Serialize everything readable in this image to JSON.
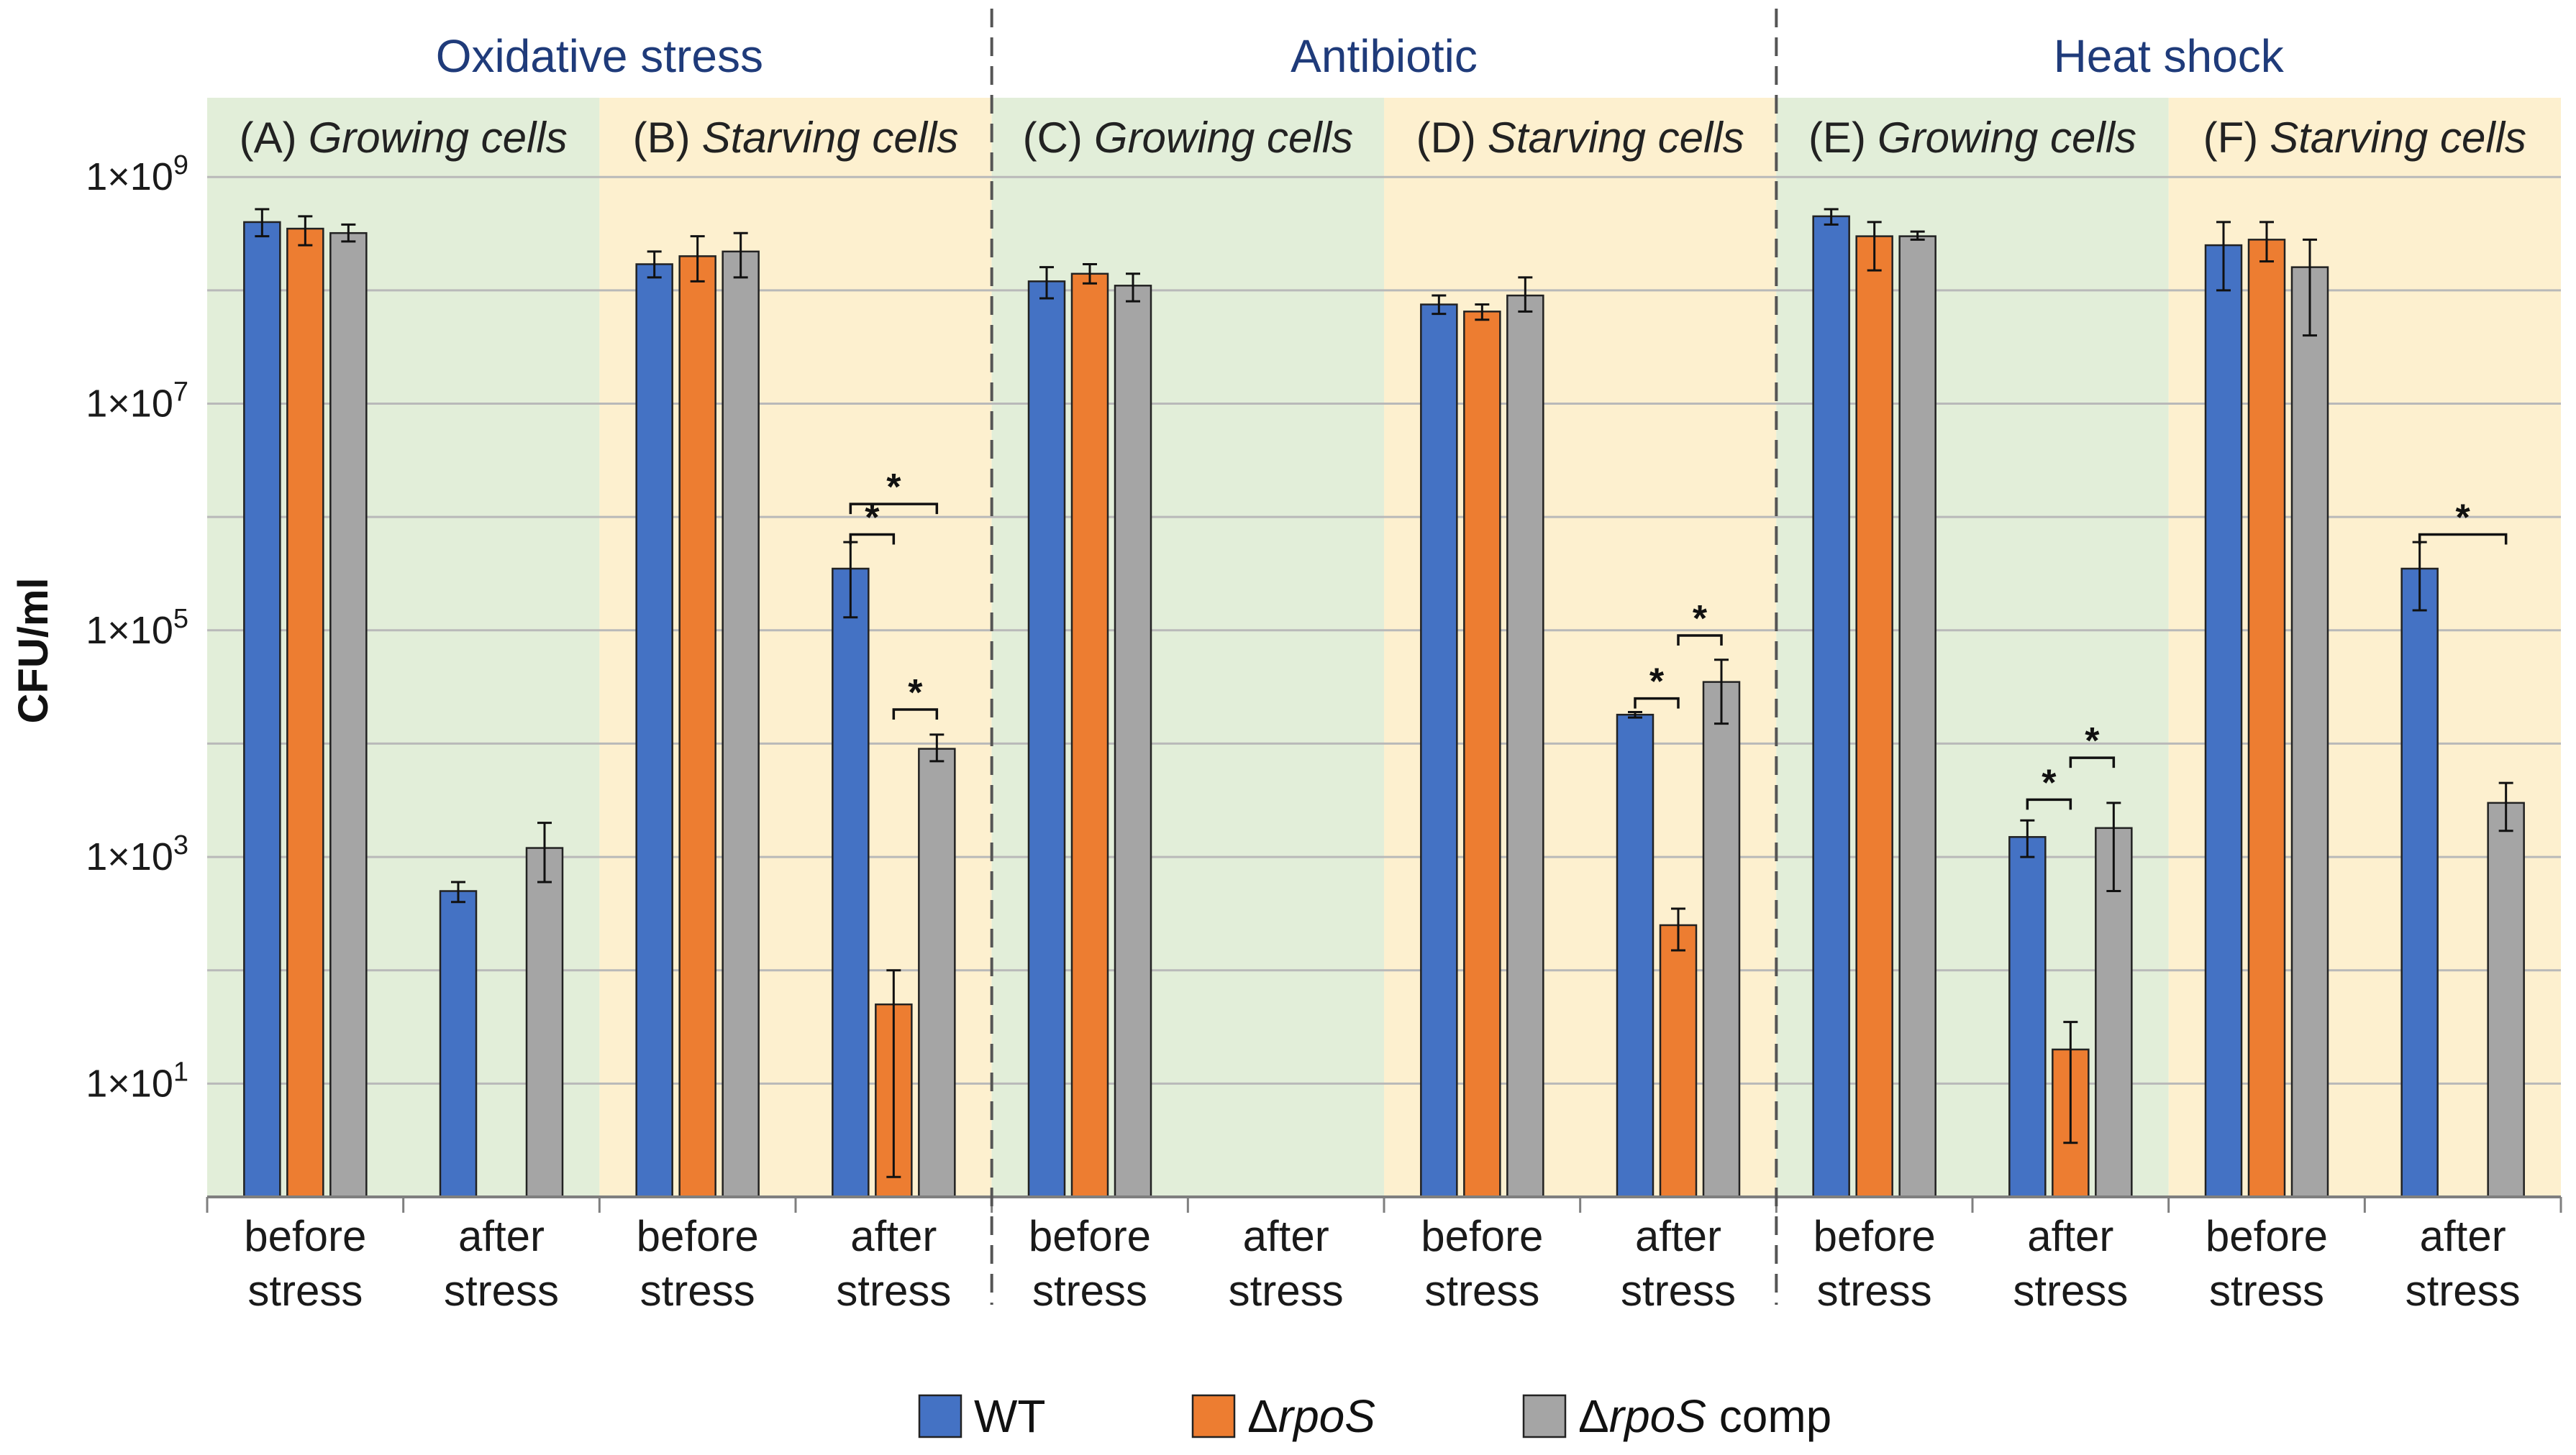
{
  "chart_data": {
    "type": "bar",
    "yscale": "log",
    "ylim": [
      1,
      5000000000
    ],
    "ylabel": "CFU/ml",
    "yticks": [
      {
        "value": 10,
        "base": "1×10",
        "exp": "1"
      },
      {
        "value": 1000,
        "base": "1×10",
        "exp": "3"
      },
      {
        "value": 100000,
        "base": "1×10",
        "exp": "5"
      },
      {
        "value": 10000000,
        "base": "1×10",
        "exp": "7"
      },
      {
        "value": 1000000000,
        "base": "1×10",
        "exp": "9"
      }
    ],
    "sections": [
      {
        "title": "Oxidative stress"
      },
      {
        "title": "Antibiotic"
      },
      {
        "title": "Heat shock"
      }
    ],
    "panels": [
      {
        "letter": "(A)",
        "name": "Growing cells",
        "bg": "#e2eed9"
      },
      {
        "letter": "(B)",
        "name": "Starving cells",
        "bg": "#fdf0cf"
      },
      {
        "letter": "(C)",
        "name": "Growing cells",
        "bg": "#e2eed9"
      },
      {
        "letter": "(D)",
        "name": "Starving cells",
        "bg": "#fdf0cf"
      },
      {
        "letter": "(E)",
        "name": "Growing cells",
        "bg": "#e2eed9"
      },
      {
        "letter": "(F)",
        "name": "Starving cells",
        "bg": "#fdf0cf"
      }
    ],
    "category_lines": [
      "before",
      "stress",
      "after",
      "stress"
    ],
    "series": [
      {
        "name": "WT",
        "italic": "",
        "suffix": "",
        "color": "#4472c4",
        "values": [
          400000000,
          500,
          170000000,
          350000,
          120000000,
          null,
          75000000,
          18000,
          450000000,
          1500,
          250000000,
          350000
        ],
        "err_low": [
          300000000,
          400,
          130000000,
          130000,
          85000000,
          null,
          62000000,
          17000,
          380000000,
          1000,
          100000000,
          150000
        ],
        "err_high": [
          520000000,
          600,
          220000000,
          600000,
          160000000,
          null,
          90000000,
          19000,
          520000000,
          2100,
          400000000,
          600000
        ]
      },
      {
        "name": "Δ",
        "italic": "rpoS",
        "suffix": "",
        "color": "#ed7d31",
        "values": [
          350000000,
          null,
          200000000,
          50,
          140000000,
          null,
          65000000,
          250,
          300000000,
          20,
          280000000,
          null
        ],
        "err_low": [
          250000000,
          null,
          120000000,
          1.5,
          115000000,
          null,
          55000000,
          150,
          150000000,
          3,
          180000000,
          null
        ],
        "err_high": [
          450000000,
          null,
          300000000,
          100,
          170000000,
          null,
          75000000,
          350,
          400000000,
          35,
          400000000,
          null
        ]
      },
      {
        "name": "Δ",
        "italic": "rpoS",
        "suffix": " comp",
        "color": "#a5a5a5",
        "values": [
          320000000,
          1200,
          220000000,
          9000,
          110000000,
          null,
          90000000,
          35000,
          300000000,
          1800,
          160000000,
          3000
        ],
        "err_low": [
          270000000,
          600,
          130000000,
          7000,
          80000000,
          null,
          65000000,
          15000,
          280000000,
          500,
          40000000,
          1700
        ],
        "err_high": [
          380000000,
          2000,
          320000000,
          12000,
          140000000,
          null,
          130000000,
          55000,
          330000000,
          3000,
          280000000,
          4500
        ]
      }
    ],
    "significance": [
      {
        "group": 3,
        "from": 0,
        "to": 2,
        "y": 1300000,
        "label": "*"
      },
      {
        "group": 3,
        "from": 0,
        "to": 1,
        "y": 700000,
        "label": "*"
      },
      {
        "group": 3,
        "from": 1,
        "to": 2,
        "y": 20000,
        "label": "*"
      },
      {
        "group": 7,
        "from": 0,
        "to": 1,
        "y": 25000,
        "label": "*"
      },
      {
        "group": 7,
        "from": 1,
        "to": 2,
        "y": 90000,
        "label": "*"
      },
      {
        "group": 9,
        "from": 0,
        "to": 1,
        "y": 3200,
        "label": "*"
      },
      {
        "group": 9,
        "from": 1,
        "to": 2,
        "y": 7500,
        "label": "*"
      },
      {
        "group": 11,
        "from": 0,
        "to": 2,
        "y": 700000,
        "label": "*"
      }
    ]
  }
}
